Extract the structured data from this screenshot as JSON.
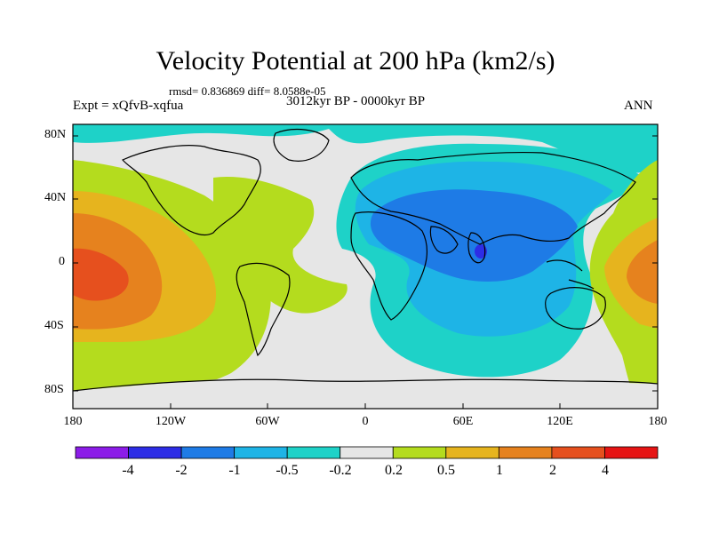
{
  "title": "Velocity Potential at 200 hPa (km2/s)",
  "stats": "rmsd= 0.836869 diff= 8.0588e-05",
  "expt": "Expt = xQfvB-xqfua",
  "period": "3012kyr BP - 0000kyr BP",
  "season": "ANN",
  "lat_labels": [
    "80N",
    "40N",
    "0",
    "40S",
    "80S"
  ],
  "lon_labels": [
    "180",
    "120W",
    "60W",
    "0",
    "60E",
    "120E",
    "180"
  ],
  "colorbar": {
    "labels": [
      "-4",
      "-2",
      "-1",
      "-0.5",
      "-0.2",
      "0.2",
      "0.5",
      "1",
      "2",
      "4"
    ],
    "colors": [
      "#8c1ce8",
      "#2d2de6",
      "#1e7be6",
      "#1eb4e6",
      "#1ed2c8",
      "#e6e6e6",
      "#b4dc1e",
      "#e6b41e",
      "#e6821e",
      "#e6501e",
      "#e61414"
    ]
  }
}
